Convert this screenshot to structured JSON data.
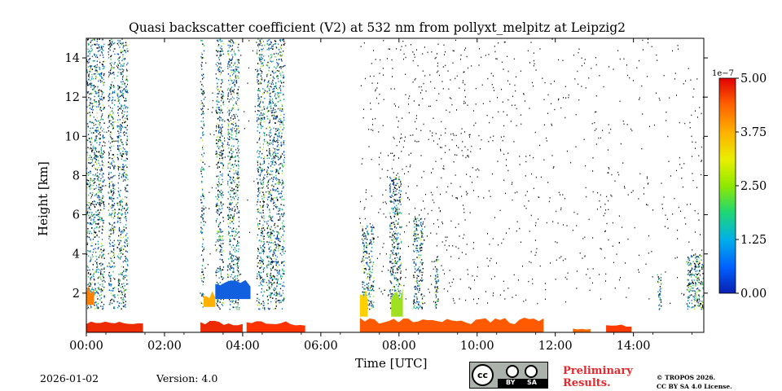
{
  "chart_data": {
    "type": "heatmap",
    "title": "Quasi backscatter coefficient (V2) at 532 nm from pollyxt_melpitz at Leipzig2",
    "xlabel": "Time [UTC]",
    "ylabel": "Height [km]",
    "x_range_hours": [
      0,
      15.8
    ],
    "ylim": [
      0,
      15
    ],
    "x_ticks": [
      {
        "value": 0,
        "label": "00:00"
      },
      {
        "value": 2,
        "label": "02:00"
      },
      {
        "value": 4,
        "label": "04:00"
      },
      {
        "value": 6,
        "label": "06:00"
      },
      {
        "value": 8,
        "label": "08:00"
      },
      {
        "value": 10,
        "label": "10:00"
      },
      {
        "value": 12,
        "label": "12:00"
      },
      {
        "value": 14,
        "label": "14:00"
      }
    ],
    "y_ticks": [
      {
        "value": 2,
        "label": "2"
      },
      {
        "value": 4,
        "label": "4"
      },
      {
        "value": 6,
        "label": "6"
      },
      {
        "value": 8,
        "label": "8"
      },
      {
        "value": 10,
        "label": "10"
      },
      {
        "value": 12,
        "label": "12"
      },
      {
        "value": 14,
        "label": "14"
      }
    ],
    "colorbar": {
      "min": 0,
      "max": 5.0,
      "multiplier": "1e−7",
      "ticks": [
        {
          "value": 0,
          "label": "0.00"
        },
        {
          "value": 1.25,
          "label": "1.25"
        },
        {
          "value": 2.5,
          "label": "2.50"
        },
        {
          "value": 3.75,
          "label": "3.75"
        },
        {
          "value": 5.0,
          "label": "5.00"
        }
      ]
    },
    "features": {
      "profile_columns": [
        {
          "start": 0.0,
          "end": 0.45,
          "top": 15
        },
        {
          "start": 0.55,
          "end": 0.72,
          "top": 15
        },
        {
          "start": 0.78,
          "end": 1.05,
          "top": 15
        },
        {
          "start": 2.92,
          "end": 3.0,
          "top": 15
        },
        {
          "start": 3.3,
          "end": 3.5,
          "top": 15
        },
        {
          "start": 3.6,
          "end": 3.9,
          "top": 15
        },
        {
          "start": 4.35,
          "end": 4.55,
          "top": 15
        },
        {
          "start": 4.6,
          "end": 5.05,
          "top": 15
        },
        {
          "start": 7.05,
          "end": 7.35,
          "top": 5.5
        },
        {
          "start": 7.75,
          "end": 8.05,
          "top": 8
        },
        {
          "start": 8.35,
          "end": 8.6,
          "top": 6
        },
        {
          "start": 8.9,
          "end": 9.0,
          "top": 4
        },
        {
          "start": 14.6,
          "end": 14.7,
          "top": 3
        },
        {
          "start": 15.35,
          "end": 15.8,
          "top": 4
        }
      ],
      "aerosol_layer_bands": [
        {
          "start": 0.0,
          "end": 1.45,
          "bottom": 0.0,
          "top": 0.6,
          "color": "#ee2a00"
        },
        {
          "start": 2.92,
          "end": 4.0,
          "bottom": 0.0,
          "top": 0.6,
          "color": "#ee2a00"
        },
        {
          "start": 4.1,
          "end": 5.6,
          "bottom": 0.0,
          "top": 0.6,
          "color": "#ff3300"
        },
        {
          "start": 7.0,
          "end": 11.7,
          "bottom": 0.0,
          "top": 0.75,
          "color": "#ff5a00"
        },
        {
          "start": 12.45,
          "end": 12.9,
          "bottom": 0.0,
          "top": 0.25,
          "color": "#ff6a00"
        },
        {
          "start": 13.3,
          "end": 13.95,
          "bottom": 0.0,
          "top": 0.4,
          "color": "#ff3a00"
        },
        {
          "start": 0.0,
          "end": 0.2,
          "bottom": 1.4,
          "top": 2.5,
          "color": "#ff8000"
        },
        {
          "start": 3.0,
          "end": 3.3,
          "bottom": 1.3,
          "top": 2.1,
          "color": "#ffb000"
        },
        {
          "start": 3.3,
          "end": 4.2,
          "bottom": 1.7,
          "top": 2.7,
          "color": "#1060e0"
        },
        {
          "start": 7.0,
          "end": 7.2,
          "bottom": 0.8,
          "top": 2.2,
          "color": "#ffd000"
        },
        {
          "start": 7.8,
          "end": 8.1,
          "bottom": 0.8,
          "top": 2.3,
          "color": "#a0e020"
        }
      ],
      "instrument_gaps": [
        {
          "start": 1.05,
          "end": 2.9
        },
        {
          "start": 5.1,
          "end": 6.95
        }
      ]
    }
  },
  "footer": {
    "date": "2026-01-02",
    "version": "Version: 4.0",
    "preliminary": [
      "Preliminary",
      "Results."
    ],
    "license_lines": [
      "© TROPOS 2026.",
      "CC BY SA 4.0 License."
    ],
    "cc_badge_label": "cc",
    "by_label": "BY",
    "sa_label": "SA"
  }
}
